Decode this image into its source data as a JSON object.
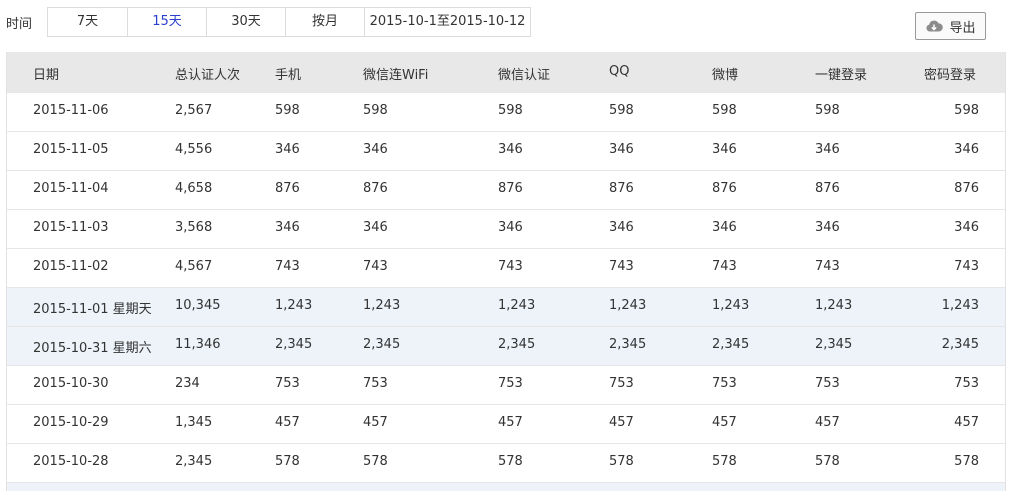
{
  "filter": {
    "label": "时间",
    "tabs": [
      {
        "label": "7天",
        "active": false
      },
      {
        "label": "15天",
        "active": true
      },
      {
        "label": "30天",
        "active": false
      },
      {
        "label": "按月",
        "active": false
      },
      {
        "label": "2015-10-1至2015-10-12",
        "active": false
      }
    ],
    "active_color": "#2a3fcf"
  },
  "export": {
    "label": "导出",
    "icon": "cloud-download-icon"
  },
  "table": {
    "columns": [
      "日期",
      "总认证人次",
      "手机",
      "微信连WiFi",
      "微信认证",
      "QQ",
      "微博",
      "一键登录",
      "密码登录"
    ],
    "rows": [
      {
        "highlight": false,
        "cells": [
          "2015-11-06",
          "2,567",
          "598",
          "598",
          "598",
          "598",
          "598",
          "598",
          "598"
        ]
      },
      {
        "highlight": false,
        "cells": [
          "2015-11-05",
          "4,556",
          "346",
          "346",
          "346",
          "346",
          "346",
          "346",
          "346"
        ]
      },
      {
        "highlight": false,
        "cells": [
          "2015-11-04",
          "4,658",
          "876",
          "876",
          "876",
          "876",
          "876",
          "876",
          "876"
        ]
      },
      {
        "highlight": false,
        "cells": [
          "2015-11-03",
          "3,568",
          "346",
          "346",
          "346",
          "346",
          "346",
          "346",
          "346"
        ]
      },
      {
        "highlight": false,
        "cells": [
          "2015-11-02",
          "4,567",
          "743",
          "743",
          "743",
          "743",
          "743",
          "743",
          "743"
        ]
      },
      {
        "highlight": true,
        "cells": [
          "2015-11-01 星期天",
          "10,345",
          "1,243",
          "1,243",
          "1,243",
          "1,243",
          "1,243",
          "1,243",
          "1,243"
        ]
      },
      {
        "highlight": true,
        "cells": [
          "2015-10-31 星期六",
          "11,346",
          "2,345",
          "2,345",
          "2,345",
          "2,345",
          "2,345",
          "2,345",
          "2,345"
        ]
      },
      {
        "highlight": false,
        "cells": [
          "2015-10-30",
          "234",
          "753",
          "753",
          "753",
          "753",
          "753",
          "753",
          "753"
        ]
      },
      {
        "highlight": false,
        "cells": [
          "2015-10-29",
          "1,345",
          "457",
          "457",
          "457",
          "457",
          "457",
          "457",
          "457"
        ]
      },
      {
        "highlight": false,
        "cells": [
          "2015-10-28",
          "2,345",
          "578",
          "578",
          "578",
          "578",
          "578",
          "578",
          "578"
        ]
      }
    ],
    "header_bg": "#e8e8e8",
    "highlight_bg": "#edf3f9"
  }
}
